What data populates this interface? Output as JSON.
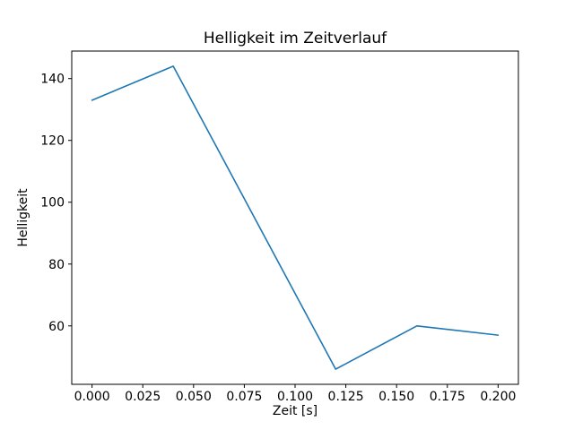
{
  "chart_data": {
    "type": "line",
    "title": "Helligkeit im Zeitverlauf",
    "xlabel": "Zeit [s]",
    "ylabel": "Helligkeit",
    "x": [
      0.0,
      0.04,
      0.12,
      0.16,
      0.2
    ],
    "y": [
      133,
      144,
      46,
      60,
      57
    ],
    "xlim": [
      -0.01,
      0.21
    ],
    "ylim": [
      41.1,
      148.9
    ],
    "x_ticks": [
      0.0,
      0.025,
      0.05,
      0.075,
      0.1,
      0.125,
      0.15,
      0.175,
      0.2
    ],
    "x_tick_labels": [
      "0.000",
      "0.025",
      "0.050",
      "0.075",
      "0.100",
      "0.125",
      "0.150",
      "0.175",
      "0.200"
    ],
    "y_ticks": [
      60,
      80,
      100,
      120,
      140
    ],
    "y_tick_labels": [
      "60",
      "80",
      "100",
      "120",
      "140"
    ],
    "line_color": "#1f77b4",
    "spine_color": "#000000",
    "background_color": "#ffffff",
    "grid": false,
    "legend_position": "none"
  }
}
